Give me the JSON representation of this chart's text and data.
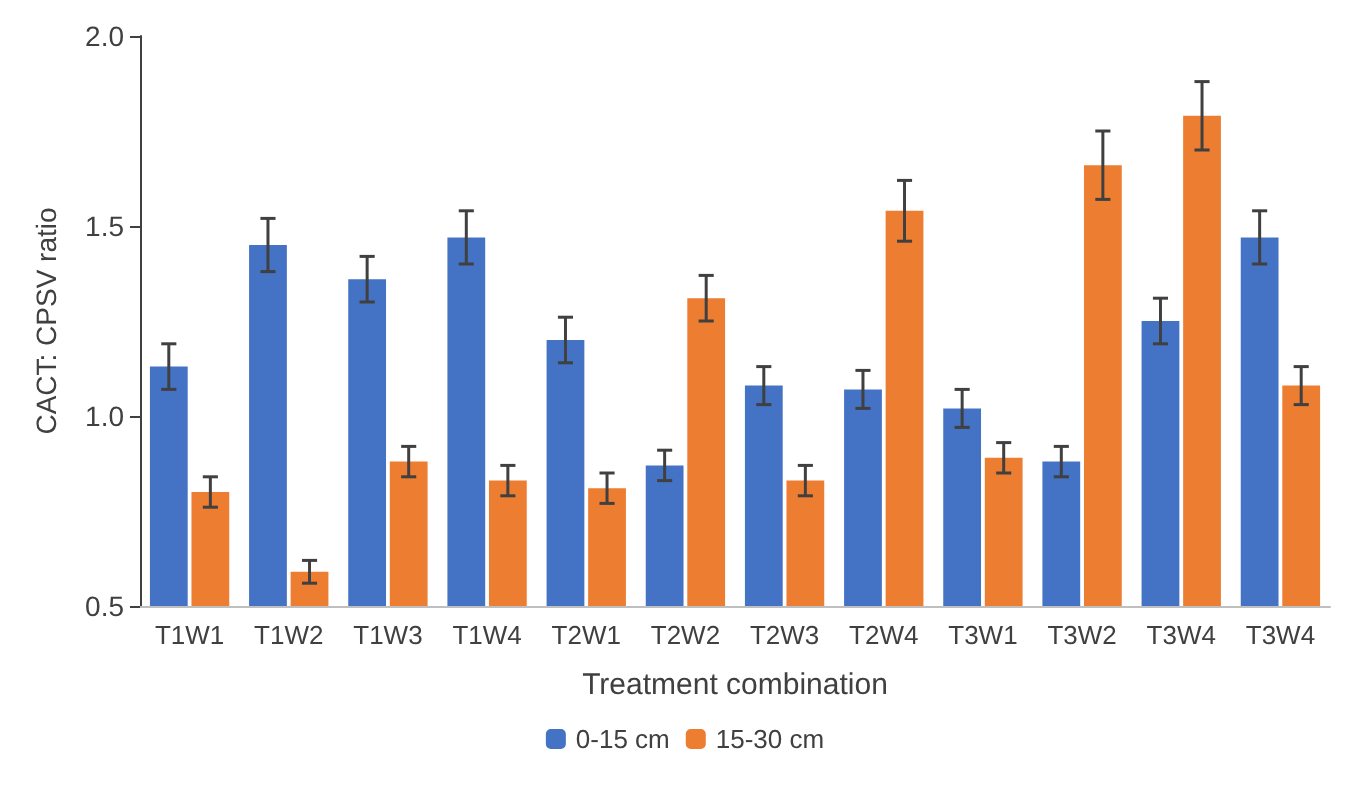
{
  "chart_data": {
    "type": "bar",
    "xlabel": "Treatment combination",
    "ylabel": "CACT: CPSV ratio",
    "categories": [
      "T1W1",
      "T1W2",
      "T1W3",
      "T1W4",
      "T2W1",
      "T2W2",
      "T2W3",
      "T2W4",
      "T3W1",
      "T3W2",
      "T3W4",
      "T3W4"
    ],
    "series": [
      {
        "name": "0-15 cm",
        "color": "#4472c4",
        "values": [
          1.13,
          1.45,
          1.36,
          1.47,
          1.2,
          0.87,
          1.08,
          1.07,
          1.02,
          0.88,
          1.25,
          1.47
        ],
        "errors": [
          0.06,
          0.07,
          0.06,
          0.07,
          0.06,
          0.04,
          0.05,
          0.05,
          0.05,
          0.04,
          0.06,
          0.07
        ]
      },
      {
        "name": "15-30 cm",
        "color": "#ed7d31",
        "values": [
          0.8,
          0.59,
          0.88,
          0.83,
          0.81,
          1.31,
          0.83,
          1.54,
          0.89,
          1.66,
          1.79,
          1.08
        ],
        "errors": [
          0.04,
          0.03,
          0.04,
          0.04,
          0.04,
          0.06,
          0.04,
          0.08,
          0.04,
          0.09,
          0.09,
          0.05
        ]
      }
    ],
    "ylim": [
      0.5,
      2.0
    ],
    "yticks": [
      {
        "value": 0.5,
        "label": "0.5"
      },
      {
        "value": 1.0,
        "label": "1.0"
      },
      {
        "value": 1.5,
        "label": "1.5"
      },
      {
        "value": 2.0,
        "label": "2.0"
      }
    ],
    "grid": false,
    "legend": "bottom"
  }
}
